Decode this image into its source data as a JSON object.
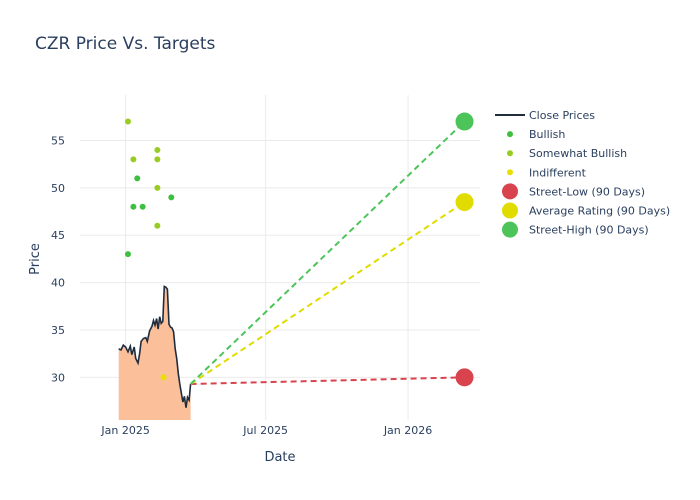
{
  "chart_data": {
    "type": "line",
    "title": "CZR Price Vs. Targets",
    "xlabel": "Date",
    "ylabel": "Price",
    "x_range": [
      "2024-11-03",
      "2026-04-04"
    ],
    "ylim": [
      25.5,
      59.8
    ],
    "x_ticks": [
      {
        "date": "2025-01-01",
        "label": "Jan 2025"
      },
      {
        "date": "2025-07-01",
        "label": "Jul 2025"
      },
      {
        "date": "2026-01-01",
        "label": "Jan 2026"
      }
    ],
    "y_ticks": [
      30,
      35,
      40,
      45,
      50,
      55
    ],
    "grid": true,
    "legend_position": "right",
    "series": [
      {
        "name": "Close Prices",
        "kind": "line",
        "color": "#1f2d3d",
        "fill_color": "#fbbf9a",
        "points": [
          [
            "2024-12-23",
            33.0
          ],
          [
            "2024-12-26",
            32.9
          ],
          [
            "2024-12-29",
            33.4
          ],
          [
            "2025-01-01",
            33.2
          ],
          [
            "2025-01-04",
            32.7
          ],
          [
            "2025-01-07",
            33.3
          ],
          [
            "2025-01-09",
            32.4
          ],
          [
            "2025-01-12",
            33.2
          ],
          [
            "2025-01-14",
            32.0
          ],
          [
            "2025-01-17",
            31.5
          ],
          [
            "2025-01-19",
            32.5
          ],
          [
            "2025-01-21",
            33.8
          ],
          [
            "2025-01-24",
            34.1
          ],
          [
            "2025-01-27",
            34.2
          ],
          [
            "2025-01-29",
            33.8
          ],
          [
            "2025-02-01",
            34.9
          ],
          [
            "2025-02-04",
            35.4
          ],
          [
            "2025-02-06",
            36.0
          ],
          [
            "2025-02-08",
            35.5
          ],
          [
            "2025-02-10",
            36.2
          ],
          [
            "2025-02-12",
            35.1
          ],
          [
            "2025-02-14",
            36.4
          ],
          [
            "2025-02-16",
            35.7
          ],
          [
            "2025-02-18",
            35.9
          ],
          [
            "2025-02-20",
            39.6
          ],
          [
            "2025-02-22",
            39.5
          ],
          [
            "2025-02-24",
            39.3
          ],
          [
            "2025-02-26",
            35.6
          ],
          [
            "2025-02-28",
            35.3
          ],
          [
            "2025-03-02",
            35.2
          ],
          [
            "2025-03-04",
            34.8
          ],
          [
            "2025-03-06",
            33.0
          ],
          [
            "2025-03-08",
            32.0
          ],
          [
            "2025-03-10",
            30.4
          ],
          [
            "2025-03-12",
            29.3
          ],
          [
            "2025-03-14",
            28.3
          ],
          [
            "2025-03-16",
            27.4
          ],
          [
            "2025-03-18",
            28.0
          ],
          [
            "2025-03-20",
            26.8
          ],
          [
            "2025-03-22",
            27.9
          ],
          [
            "2025-03-24",
            27.6
          ],
          [
            "2025-03-26",
            29.3
          ]
        ]
      },
      {
        "name": "Bullish",
        "kind": "markers",
        "color": "#3fbf3f",
        "points": [
          [
            "2025-01-04",
            43.0
          ],
          [
            "2025-01-11",
            48.0
          ],
          [
            "2025-01-16",
            51.0
          ],
          [
            "2025-01-23",
            48.0
          ],
          [
            "2025-03-01",
            49.0
          ]
        ]
      },
      {
        "name": "Somewhat Bullish",
        "kind": "markers",
        "color": "#99cc22",
        "points": [
          [
            "2025-01-04",
            57.0
          ],
          [
            "2025-01-11",
            53.0
          ],
          [
            "2025-02-11",
            54.0
          ],
          [
            "2025-02-11",
            53.0
          ],
          [
            "2025-02-11",
            50.0
          ],
          [
            "2025-02-11",
            46.0
          ]
        ]
      },
      {
        "name": "Indifferent",
        "kind": "markers",
        "color": "#e8e000",
        "points": [
          [
            "2025-02-19",
            30.0
          ]
        ]
      },
      {
        "name": "Street-Low (90 Days)",
        "kind": "target",
        "color": "#d9434e",
        "from": [
          "2025-03-26",
          29.3
        ],
        "to": [
          "2026-03-15",
          30.0
        ]
      },
      {
        "name": "Average Rating (90 Days)",
        "kind": "target",
        "color": "#e0dc00",
        "from": [
          "2025-03-26",
          29.3
        ],
        "to": [
          "2026-03-15",
          48.5
        ]
      },
      {
        "name": "Street-High (90 Days)",
        "kind": "target",
        "color": "#4cc45a",
        "from": [
          "2025-03-26",
          29.3
        ],
        "to": [
          "2026-03-15",
          57.0
        ]
      }
    ]
  }
}
